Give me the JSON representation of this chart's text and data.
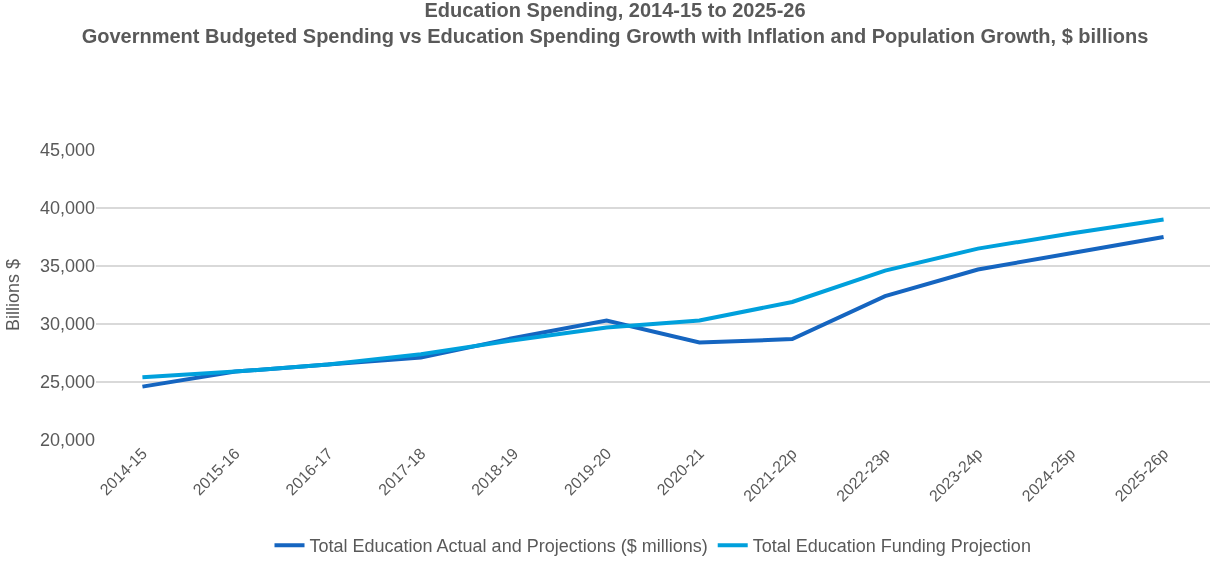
{
  "chart_data": {
    "type": "line",
    "title": "Education Spending, 2014-15 to 2025-26",
    "subtitle": "Government Budgeted Spending vs Education Spending Growth with Inflation and Population Growth, $ billions",
    "ylabel": "Billions $",
    "categories": [
      "2014-15",
      "2015-16",
      "2016-17",
      "2017-18",
      "2018-19",
      "2019-20",
      "2020-21",
      "2021-22p",
      "2022-23p",
      "2023-24p",
      "2024-25p",
      "2025-26p"
    ],
    "series": [
      {
        "name": "Total Education Actual and Projections ($ millions)",
        "color": "#1565c0",
        "values": [
          24600,
          25900,
          26500,
          27100,
          28800,
          30300,
          28400,
          28700,
          32400,
          34700,
          36100,
          37500
        ]
      },
      {
        "name": "Total Education Funding Projection",
        "color": "#00a0dc",
        "values": [
          25400,
          25900,
          26500,
          27400,
          28600,
          29700,
          30300,
          31900,
          34600,
          36500,
          37800,
          39000
        ]
      }
    ],
    "ylim": [
      20000,
      45000
    ],
    "yticks": [
      {
        "value": 20000,
        "label": "20,000"
      },
      {
        "value": 25000,
        "label": "25,000"
      },
      {
        "value": 30000,
        "label": "30,000"
      },
      {
        "value": 35000,
        "label": "35,000"
      },
      {
        "value": 40000,
        "label": "40,000"
      },
      {
        "value": 45000,
        "label": "45,000"
      }
    ],
    "grid": "y",
    "legend": "bottom",
    "marker": "none",
    "line_style": "solid"
  }
}
